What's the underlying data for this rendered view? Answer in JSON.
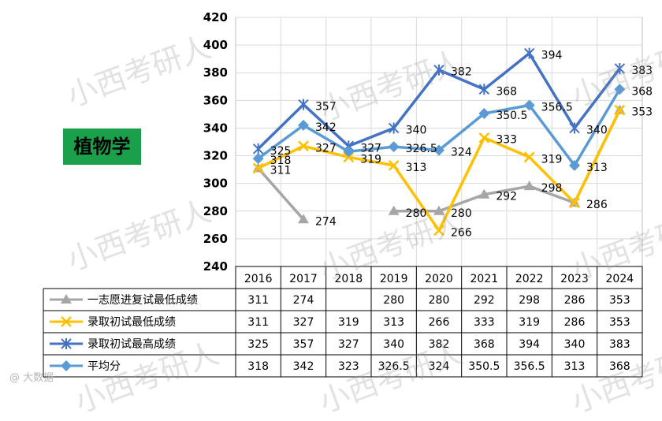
{
  "subject_label": "植物学",
  "watermark_text": "小西考研人",
  "footer_mark": "@ 大数据",
  "chart_data": {
    "type": "line",
    "title": "",
    "xlabel": "",
    "ylabel": "",
    "ylim": [
      240,
      420
    ],
    "yticks": [
      240,
      260,
      280,
      300,
      320,
      340,
      360,
      380,
      400,
      420
    ],
    "grid": true,
    "categories": [
      "2016",
      "2017",
      "2018",
      "2019",
      "2020",
      "2021",
      "2022",
      "2023",
      "2024"
    ],
    "series": [
      {
        "name": "一志愿进复试最低成绩",
        "color": "#a6a6a6",
        "marker": "triangle",
        "values": [
          311,
          274,
          null,
          280,
          280,
          292,
          298,
          286,
          353
        ],
        "table_values": [
          "311",
          "274",
          "",
          "280",
          "280",
          "292",
          "298",
          "286",
          "353"
        ],
        "point_labels": [
          "",
          "274",
          "",
          "280",
          "280",
          "292",
          "298",
          "286",
          ""
        ]
      },
      {
        "name": "录取初试最低成绩",
        "color": "#ffc000",
        "marker": "x",
        "values": [
          311,
          327,
          319,
          313,
          266,
          333,
          319,
          286,
          353
        ],
        "table_values": [
          "311",
          "327",
          "319",
          "313",
          "266",
          "333",
          "319",
          "286",
          "353"
        ],
        "point_labels": [
          "311",
          "327",
          "319",
          "313",
          "266",
          "333",
          "319",
          "",
          "353"
        ]
      },
      {
        "name": "录取初试最高成绩",
        "color": "#4472c4",
        "marker": "star",
        "values": [
          325,
          357,
          327,
          340,
          382,
          368,
          394,
          340,
          383
        ],
        "table_values": [
          "325",
          "357",
          "327",
          "340",
          "382",
          "368",
          "394",
          "340",
          "383"
        ],
        "point_labels": [
          "325",
          "357",
          "327",
          "340",
          "382",
          "368",
          "394",
          "340",
          "383"
        ]
      },
      {
        "name": "平均分",
        "color": "#5b9bd5",
        "marker": "diamond",
        "values": [
          318,
          342,
          323,
          326.5,
          324,
          350.5,
          356.5,
          313,
          368
        ],
        "table_values": [
          "318",
          "342",
          "323",
          "326.5",
          "324",
          "350.5",
          "356.5",
          "313",
          "368"
        ],
        "point_labels": [
          "318",
          "342",
          "",
          "326.5",
          "324",
          "350.5",
          "356.5",
          "313",
          "368"
        ]
      }
    ]
  }
}
